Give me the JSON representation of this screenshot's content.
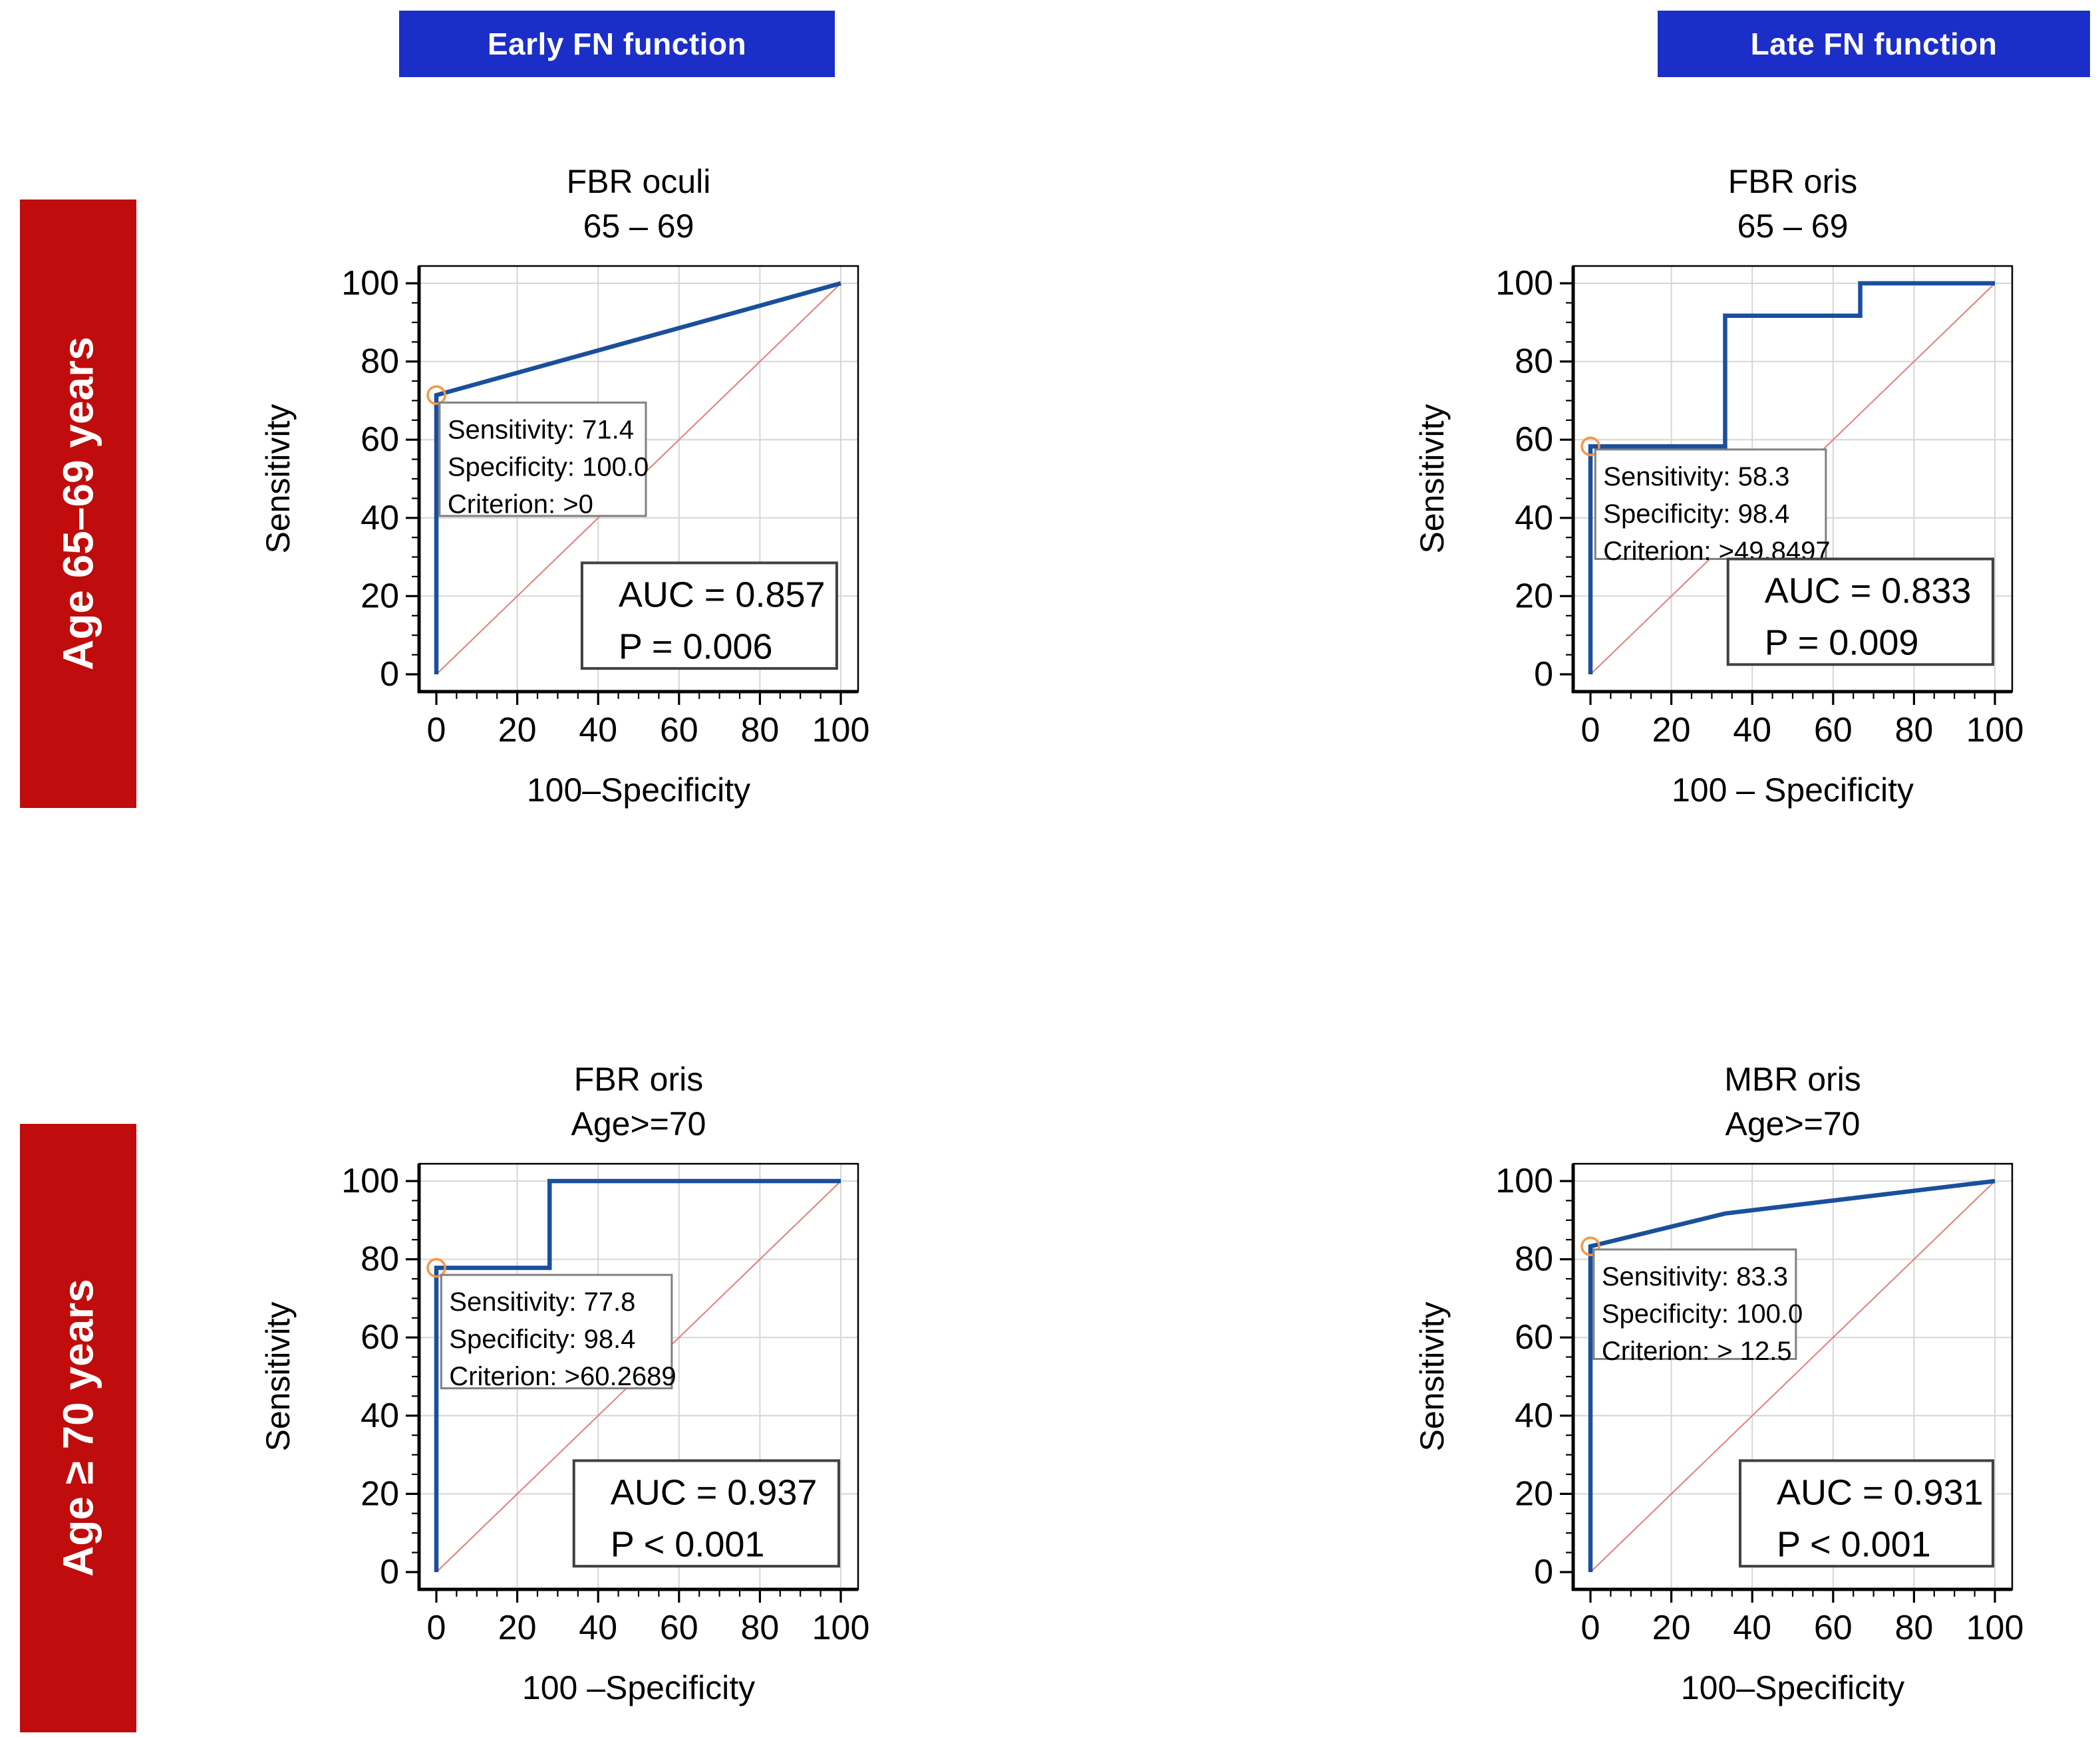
{
  "headers": {
    "early": "Early FN function",
    "late": "Late FN function"
  },
  "row_labels": {
    "top": "Age 65–69 years",
    "bottom": "Age ≥ 70 years"
  },
  "colors": {
    "header_blue": "#1b2ec8",
    "row_label_red": "#c00c0c",
    "roc_blue": "#1a4f9c",
    "diagonal_red": "#e57d78",
    "grid_gray": "#d6d6d6",
    "tooltip_border": "#808080",
    "auc_border": "#404040",
    "marker_orange": "#f79646"
  },
  "chart_data": [
    {
      "id": "early-65-69",
      "type": "line",
      "title": "FBR oculi",
      "subtitle": "65 – 69",
      "xlabel": "100–Specificity",
      "ylabel": "Sensitivity",
      "xlim": [
        0,
        100
      ],
      "ylim": [
        0,
        100
      ],
      "xticks": [
        0,
        20,
        40,
        60,
        80,
        100
      ],
      "yticks": [
        0,
        20,
        40,
        60,
        80,
        100
      ],
      "minor_tick_step": 5,
      "grid": true,
      "series": [
        {
          "name": "ROC curve",
          "points": [
            [
              0,
              0
            ],
            [
              0,
              71.4
            ],
            [
              100,
              100
            ]
          ]
        },
        {
          "name": "reference diagonal",
          "points": [
            [
              0,
              0
            ],
            [
              100,
              100
            ]
          ]
        }
      ],
      "operating_point": {
        "x": 0,
        "y": 71.4
      },
      "tooltip": {
        "lines": [
          "Sensitivity: 71.4",
          "Specificity: 100.0",
          "Criterion: >0"
        ],
        "box": {
          "x": 0.8,
          "y_top": 69.5,
          "w": 51,
          "h": 29
        }
      },
      "auc_label": {
        "lines": [
          "AUC = 0.857",
          "P = 0.006"
        ],
        "box": {
          "x": 36,
          "y_top": 28.5,
          "w": 63,
          "h": 27
        }
      }
    },
    {
      "id": "late-65-69",
      "type": "line",
      "title": "FBR oris",
      "subtitle": "65 – 69",
      "xlabel": "100 – Specificity",
      "ylabel": "Sensitivity",
      "xlim": [
        0,
        100
      ],
      "ylim": [
        0,
        100
      ],
      "xticks": [
        0,
        20,
        40,
        60,
        80,
        100
      ],
      "yticks": [
        0,
        20,
        40,
        60,
        80,
        100
      ],
      "minor_tick_step": 5,
      "grid": true,
      "series": [
        {
          "name": "ROC curve",
          "points": [
            [
              0,
              0
            ],
            [
              0,
              58.3
            ],
            [
              33.3,
              58.3
            ],
            [
              33.3,
              91.7
            ],
            [
              66.7,
              91.7
            ],
            [
              66.7,
              100
            ],
            [
              100,
              100
            ]
          ]
        },
        {
          "name": "reference diagonal",
          "points": [
            [
              0,
              0
            ],
            [
              100,
              100
            ]
          ]
        }
      ],
      "operating_point": {
        "x": 0,
        "y": 58.3
      },
      "tooltip": {
        "lines": [
          "Sensitivity: 58.3",
          "Specificity: 98.4",
          "Criterion: >49.8497"
        ],
        "box": {
          "x": 1.2,
          "y_top": 57.5,
          "w": 57,
          "h": 28
        }
      },
      "auc_label": {
        "lines": [
          "AUC = 0.833",
          "P = 0.009"
        ],
        "box": {
          "x": 34,
          "y_top": 29.5,
          "w": 65.5,
          "h": 27
        }
      }
    },
    {
      "id": "early-70plus",
      "type": "line",
      "title": "FBR oris",
      "subtitle": "Age>=70",
      "xlabel": "100 –Specificity",
      "ylabel": "Sensitivity",
      "xlim": [
        0,
        100
      ],
      "ylim": [
        0,
        100
      ],
      "xticks": [
        0,
        20,
        40,
        60,
        80,
        100
      ],
      "yticks": [
        0,
        20,
        40,
        60,
        80,
        100
      ],
      "minor_tick_step": 5,
      "grid": true,
      "series": [
        {
          "name": "ROC curve",
          "points": [
            [
              0,
              0
            ],
            [
              0,
              77.8
            ],
            [
              28,
              77.8
            ],
            [
              28,
              100
            ],
            [
              100,
              100
            ]
          ]
        },
        {
          "name": "reference diagonal",
          "points": [
            [
              0,
              0
            ],
            [
              100,
              100
            ]
          ]
        }
      ],
      "operating_point": {
        "x": 0,
        "y": 77.8
      },
      "tooltip": {
        "lines": [
          "Sensitivity: 77.8",
          "Specificity: 98.4",
          "Criterion: >60.2689"
        ],
        "box": {
          "x": 1.2,
          "y_top": 76,
          "w": 57,
          "h": 29
        }
      },
      "auc_label": {
        "lines": [
          "AUC = 0.937",
          "P < 0.001"
        ],
        "box": {
          "x": 34,
          "y_top": 28.5,
          "w": 65.5,
          "h": 27
        }
      }
    },
    {
      "id": "late-70plus",
      "type": "line",
      "title": "MBR oris",
      "subtitle": "Age>=70",
      "xlabel": "100–Specificity",
      "ylabel": "Sensitivity",
      "xlim": [
        0,
        100
      ],
      "ylim": [
        0,
        100
      ],
      "xticks": [
        0,
        20,
        40,
        60,
        80,
        100
      ],
      "yticks": [
        0,
        20,
        40,
        60,
        80,
        100
      ],
      "minor_tick_step": 5,
      "grid": true,
      "series": [
        {
          "name": "ROC curve",
          "points": [
            [
              0,
              0
            ],
            [
              0,
              83.3
            ],
            [
              33.3,
              91.7
            ],
            [
              100,
              100
            ]
          ]
        },
        {
          "name": "reference diagonal",
          "points": [
            [
              0,
              0
            ],
            [
              100,
              100
            ]
          ]
        }
      ],
      "operating_point": {
        "x": 0,
        "y": 83.3
      },
      "tooltip": {
        "lines": [
          "Sensitivity: 83.3",
          "Specificity: 100.0",
          "Criterion: > 12.5"
        ],
        "box": {
          "x": 0.8,
          "y_top": 82.5,
          "w": 50,
          "h": 28
        }
      },
      "auc_label": {
        "lines": [
          "AUC = 0.931",
          "P < 0.001"
        ],
        "box": {
          "x": 37,
          "y_top": 28.5,
          "w": 62.5,
          "h": 27
        }
      }
    }
  ]
}
